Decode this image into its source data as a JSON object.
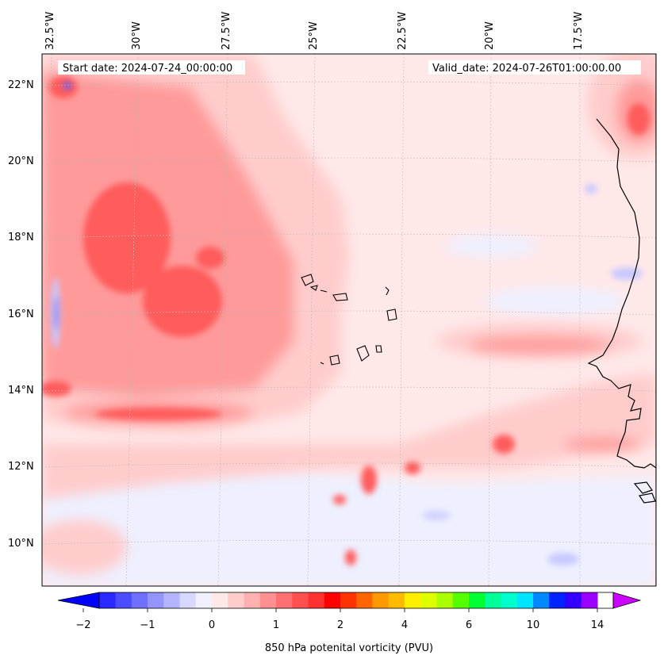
{
  "header": {
    "start_date": "Start date: 2024-07-24_00:00:00",
    "valid_date": "Valid_date: 2024-07-26T01:00:00.00"
  },
  "longitude_labels": [
    "32.5°W",
    "30°W",
    "27.5°W",
    "25°W",
    "22.5°W",
    "20°W",
    "17.5°W"
  ],
  "latitude_labels": [
    "22°N",
    "20°N",
    "18°N",
    "16°N",
    "14°N",
    "12°N",
    "10°N"
  ],
  "colorbar": {
    "label": "850 hPa potenital vorticity (PVU)",
    "tick_labels": [
      "−2",
      "−1",
      "0",
      "1",
      "2",
      "4",
      "6",
      "10",
      "14"
    ],
    "colors": [
      "#0000ff",
      "#2828ff",
      "#4b4bff",
      "#7070ff",
      "#9494ff",
      "#b4b4ff",
      "#d8d8ff",
      "#f0f0ff",
      "#ffe8e8",
      "#ffcccc",
      "#ffb0b0",
      "#ff9090",
      "#ff7070",
      "#ff5050",
      "#ff3030",
      "#ff0000",
      "#ff3300",
      "#ff6600",
      "#ff9900",
      "#ffbb00",
      "#ffee00",
      "#ddff00",
      "#aaff00",
      "#55ff00",
      "#00ff33",
      "#00ff99",
      "#00ffcc",
      "#00e5ff",
      "#0088ff",
      "#0022ff",
      "#3300ff",
      "#9900ff"
    ]
  }
}
